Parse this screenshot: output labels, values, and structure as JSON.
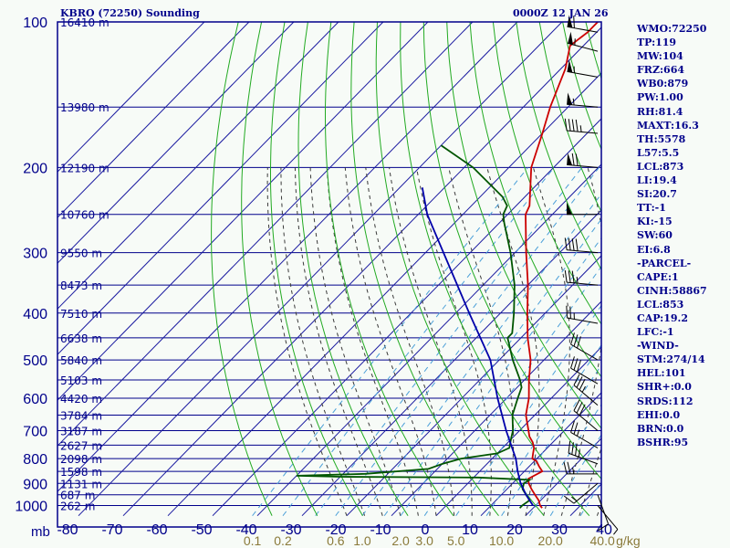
{
  "header": {
    "station": "KBRO (72250) Sounding",
    "time": "0000Z 12 JAN 26"
  },
  "indices": [
    "WMO:72250",
    "TP:119",
    "MW:104",
    "FRZ:664",
    "WB0:879",
    "PW:1.00",
    "RH:81.4",
    "MAXT:16.3",
    "TH:5578",
    "L57:5.5",
    "LCL:873",
    "LI:19.4",
    "SI:20.7",
    "TT:-1",
    "KI:-15",
    "SW:60",
    "EI:6.8",
    "-PARCEL-",
    "CAPE:1",
    "CINH:58867",
    "LCL:853",
    "CAP:19.2",
    "LFC:-1",
    "-WIND-",
    "STM:274/14",
    "HEL:101",
    "SHR+:0.0",
    "SRDS:112",
    "EHI:0.0",
    "BRN:0.0",
    "BSHR:95"
  ],
  "colors": {
    "frame": "#00008b",
    "isobar": "#00008b",
    "isotherm": "#1a1aa0",
    "dry_adiabat": "#22aa22",
    "moist_adiabat": "#3a3a3a",
    "mixing_ratio": "#4a9fd8",
    "temperature": "#cc0000",
    "dewpoint": "#005500",
    "parcel": "#0000aa",
    "wind_barb": "#000000",
    "background": "#f7fbf7"
  },
  "chart_data": {
    "type": "skew-t log-p sounding",
    "title": "KBRO (72250) Sounding",
    "xlabel": "",
    "ylabel": "mb",
    "pressure_axis": {
      "range_mb": [
        100,
        1050
      ],
      "scale": "log",
      "tick_labels": [
        "100",
        "200",
        "300",
        "400",
        "500",
        "600",
        "700",
        "800",
        "900",
        "1000"
      ]
    },
    "temperature_axis": {
      "range_C": [
        -80,
        40
      ],
      "tick_labels": [
        "-80",
        "-70",
        "-60",
        "-50",
        "-40",
        "-30",
        "-20",
        "-10",
        "0",
        "10",
        "20",
        "30",
        "40"
      ]
    },
    "mixing_ratio_labels": [
      "0.1",
      "0.2",
      "0.6",
      "1.0",
      "2.0",
      "3.0",
      "5.0",
      "10.0",
      "20.0",
      "40.0"
    ],
    "mixing_ratio_unit": "g/kg",
    "height_labels": [
      {
        "p": 100,
        "label": "16410 m"
      },
      {
        "p": 150,
        "label": "13980 m"
      },
      {
        "p": 200,
        "label": "12190 m"
      },
      {
        "p": 250,
        "label": "10760 m"
      },
      {
        "p": 300,
        "label": "9550 m"
      },
      {
        "p": 350,
        "label": "8473 m"
      },
      {
        "p": 400,
        "label": "7510 m"
      },
      {
        "p": 450,
        "label": "6638 m"
      },
      {
        "p": 500,
        "label": "5840 m"
      },
      {
        "p": 550,
        "label": "5103 m"
      },
      {
        "p": 600,
        "label": "4420 m"
      },
      {
        "p": 650,
        "label": "3784 m"
      },
      {
        "p": 700,
        "label": "3187 m"
      },
      {
        "p": 750,
        "label": "2627 m"
      },
      {
        "p": 800,
        "label": "2098 m"
      },
      {
        "p": 850,
        "label": "1598 m"
      },
      {
        "p": 900,
        "label": "1131 m"
      },
      {
        "p": 950,
        "label": "687 m"
      },
      {
        "p": 1000,
        "label": "262 m"
      }
    ],
    "series": [
      {
        "key": "temperature",
        "points": [
          [
            1012,
            22
          ],
          [
            1000,
            21
          ],
          [
            975,
            19.5
          ],
          [
            950,
            17.5
          ],
          [
            925,
            15.5
          ],
          [
            900,
            13.6
          ],
          [
            880,
            12.5
          ],
          [
            850,
            14
          ],
          [
            830,
            12.2
          ],
          [
            810,
            10.5
          ],
          [
            800,
            9
          ],
          [
            780,
            8
          ],
          [
            760,
            7
          ],
          [
            740,
            5.5
          ],
          [
            720,
            3.5
          ],
          [
            700,
            2
          ],
          [
            650,
            -2
          ],
          [
            600,
            -5
          ],
          [
            550,
            -9
          ],
          [
            500,
            -13
          ],
          [
            450,
            -18.5
          ],
          [
            400,
            -24
          ],
          [
            350,
            -30
          ],
          [
            300,
            -37.5
          ],
          [
            250,
            -46
          ],
          [
            240,
            -47
          ],
          [
            200,
            -55
          ],
          [
            170,
            -60
          ],
          [
            150,
            -64
          ],
          [
            125,
            -69
          ],
          [
            112,
            -73
          ],
          [
            105,
            -72
          ],
          [
            100,
            -72
          ]
        ]
      },
      {
        "key": "dewpoint",
        "points": [
          [
            1012,
            17
          ],
          [
            1000,
            17
          ],
          [
            975,
            17.5
          ],
          [
            950,
            15.5
          ],
          [
            925,
            13.5
          ],
          [
            900,
            12.5
          ],
          [
            885,
            13
          ],
          [
            875,
            1
          ],
          [
            872,
            -30
          ],
          [
            868,
            -40
          ],
          [
            860,
            -25
          ],
          [
            840,
            -12
          ],
          [
            820,
            -10
          ],
          [
            800,
            -7
          ],
          [
            780,
            0
          ],
          [
            760,
            1.5
          ],
          [
            740,
            0.5
          ],
          [
            720,
            -0.5
          ],
          [
            700,
            -1.5
          ],
          [
            650,
            -5
          ],
          [
            600,
            -7.5
          ],
          [
            570,
            -9
          ],
          [
            550,
            -11
          ],
          [
            500,
            -17
          ],
          [
            450,
            -23
          ],
          [
            440,
            -23
          ],
          [
            400,
            -27
          ],
          [
            350,
            -33
          ],
          [
            300,
            -41
          ],
          [
            260,
            -49
          ],
          [
            250,
            -51
          ],
          [
            245,
            -51.5
          ],
          [
            240,
            -52
          ],
          [
            230,
            -55
          ],
          [
            200,
            -68
          ],
          [
            180,
            -80
          ]
        ]
      },
      {
        "key": "parcel",
        "points": [
          [
            1000,
            19.4
          ],
          [
            950,
            15.5
          ],
          [
            900,
            11.8
          ],
          [
            850,
            8.5
          ],
          [
            800,
            5.3
          ],
          [
            700,
            -3
          ],
          [
            600,
            -12
          ],
          [
            500,
            -22
          ],
          [
            400,
            -37
          ],
          [
            300,
            -56
          ],
          [
            250,
            -68
          ],
          [
            220,
            -75
          ]
        ]
      }
    ],
    "wind_barbs": [
      {
        "p": 105,
        "dir": 280,
        "spd": 60
      },
      {
        "p": 115,
        "dir": 285,
        "spd": 55
      },
      {
        "p": 130,
        "dir": 280,
        "spd": 55
      },
      {
        "p": 150,
        "dir": 275,
        "spd": 55
      },
      {
        "p": 170,
        "dir": 275,
        "spd": 45
      },
      {
        "p": 200,
        "dir": 275,
        "spd": 70
      },
      {
        "p": 250,
        "dir": 270,
        "spd": 50
      },
      {
        "p": 300,
        "dir": 275,
        "spd": 40
      },
      {
        "p": 350,
        "dir": 275,
        "spd": 35
      },
      {
        "p": 420,
        "dir": 280,
        "spd": 25
      },
      {
        "p": 500,
        "dir": 300,
        "spd": 30
      },
      {
        "p": 560,
        "dir": 300,
        "spd": 30
      },
      {
        "p": 620,
        "dir": 310,
        "spd": 35
      },
      {
        "p": 700,
        "dir": 310,
        "spd": 30
      },
      {
        "p": 760,
        "dir": 300,
        "spd": 25
      },
      {
        "p": 820,
        "dir": 290,
        "spd": 35
      },
      {
        "p": 860,
        "dir": 270,
        "spd": 25
      },
      {
        "p": 900,
        "dir": 230,
        "spd": 15
      },
      {
        "p": 950,
        "dir": 160,
        "spd": 10
      },
      {
        "p": 1000,
        "dir": 140,
        "spd": 5
      }
    ],
    "grid": true
  }
}
